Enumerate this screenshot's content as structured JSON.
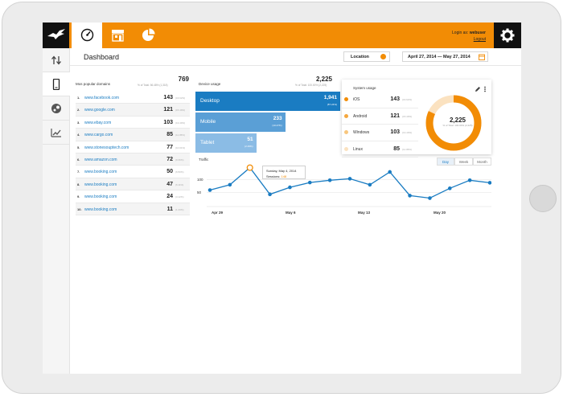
{
  "topbar": {
    "login_label": "Login as:",
    "username": "webuser",
    "logout_label": "Logout",
    "accent_color": "#f28c05"
  },
  "icons": {
    "logo": "bird-logo-icon",
    "nav": [
      "gauge-icon",
      "store-icon",
      "pie-chart-icon"
    ],
    "settings": "gear-icon",
    "sidebar": [
      "sort-arrows-icon",
      "mobile-device-icon",
      "steam-icon",
      "line-chart-icon"
    ]
  },
  "header": {
    "title": "Dashboard",
    "location_label": "Location",
    "date_range": "April 27, 2014 — May 27, 2014"
  },
  "domains": {
    "title": "Mos popular domains",
    "total": "769",
    "total_sub": "% of Total: 56.48% (1,318)",
    "rows": [
      {
        "rank": "1.",
        "name": "www.facebook.com",
        "value": "143",
        "pct": "(16.62%)"
      },
      {
        "rank": "2.",
        "name": "www.google.com",
        "value": "121",
        "pct": "(15.49%)"
      },
      {
        "rank": "3.",
        "name": "www.ebay.com",
        "value": "103",
        "pct": "(13.40%)"
      },
      {
        "rank": "4.",
        "name": "www.cargo.com",
        "value": "85",
        "pct": "(11.05%)"
      },
      {
        "rank": "5.",
        "name": "www.stonesouptech.com",
        "value": "77",
        "pct": "(10.01%)"
      },
      {
        "rank": "6.",
        "name": "www.amazon.com",
        "value": "72",
        "pct": "(9.36%)"
      },
      {
        "rank": "7.",
        "name": "www.booking.com",
        "value": "50",
        "pct": "(6.50%)"
      },
      {
        "rank": "8.",
        "name": "www.booking.com",
        "value": "47",
        "pct": "(6.11%)"
      },
      {
        "rank": "9.",
        "name": "www.booking.com",
        "value": "24",
        "pct": "(3.12%)"
      },
      {
        "rank": "10.",
        "name": "www.booking.com",
        "value": "11",
        "pct": "(1.43%)"
      }
    ]
  },
  "devices": {
    "title": "Device usage",
    "total": "2,225",
    "total_sub": "% of Total: 100.00% (2,225)",
    "bars": [
      {
        "label": "Desktop",
        "value": "1,941",
        "pct": "(87.24%)",
        "share": 1.0,
        "color": "#1a7cc2"
      },
      {
        "label": "Mobile",
        "value": "233",
        "pct": "(10.47%)",
        "share": 0.62,
        "color": "#5a9fd6"
      },
      {
        "label": "Tablet",
        "value": "51",
        "pct": "(2.29%)",
        "share": 0.42,
        "color": "#8bbce5"
      }
    ]
  },
  "system": {
    "title": "System usage",
    "donut_total": "2,225",
    "donut_sub": "% of Total: 100.00% (2,225)",
    "rows": [
      {
        "name": "iOS",
        "value": "143",
        "pct": "(16.62%)",
        "color": "#f28c05"
      },
      {
        "name": "Android",
        "value": "121",
        "pct": "(15.49%)",
        "color": "#f5a73e"
      },
      {
        "name": "Windows",
        "value": "103",
        "pct": "(13.40%)",
        "color": "#f8c77e"
      },
      {
        "name": "Linux",
        "value": "85",
        "pct": "(11.05%)",
        "color": "#fbe2c0"
      }
    ],
    "donut_fraction": 0.82
  },
  "traffic": {
    "title": "Traffic",
    "tabs": [
      "Day",
      "Week",
      "Month"
    ],
    "active_tab": "Day",
    "tooltip_date": "Sunday, May 4, 2014",
    "tooltip_label": "Sessions:",
    "tooltip_value": "148"
  },
  "chart_data": {
    "type": "line",
    "title": "Traffic",
    "x_ticks": [
      "Apr 29",
      "May 6",
      "May 13",
      "May 20"
    ],
    "y_ticks": [
      "100",
      "50"
    ],
    "ylim": [
      0,
      150
    ],
    "series": [
      {
        "values": [
          59,
          80,
          148,
          42,
          70,
          89,
          98,
          104,
          80,
          131,
          37,
          27,
          66,
          98,
          88
        ]
      }
    ],
    "highlight_index": 2,
    "line_color": "#1a7cc2",
    "highlight_color": "#f28c05",
    "grid": true
  }
}
